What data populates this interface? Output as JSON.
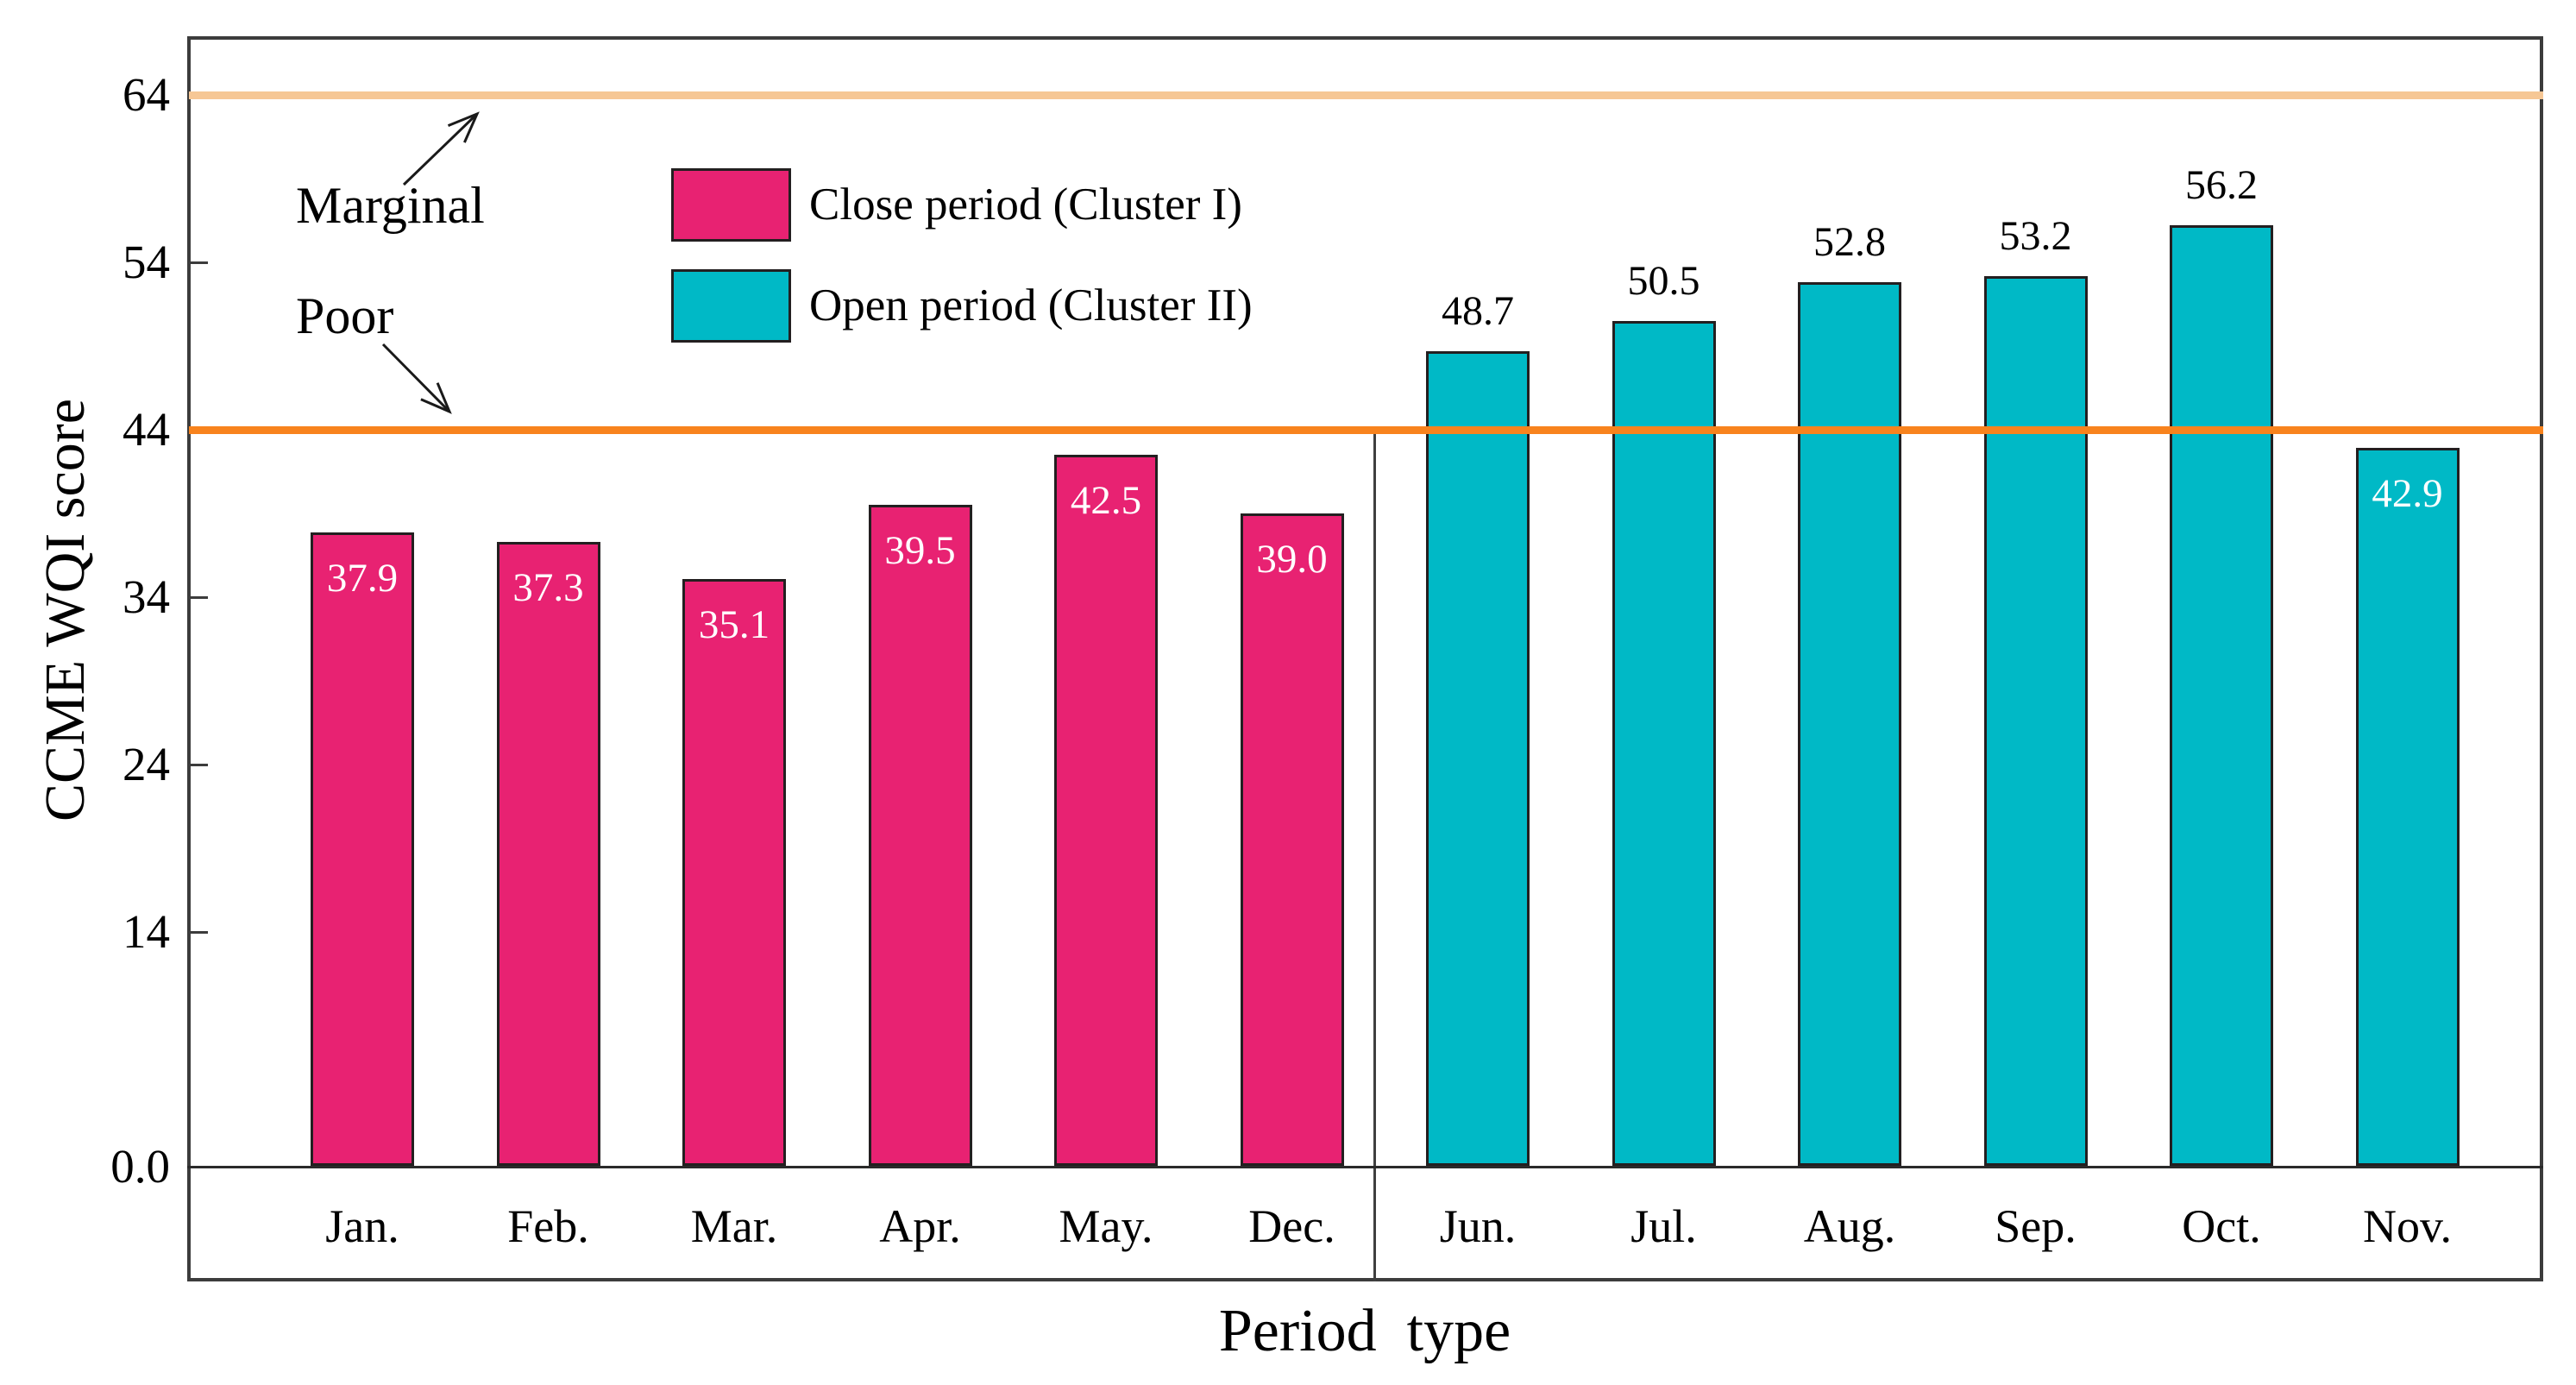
{
  "figure": {
    "background_color": "#ffffff",
    "frame_color": "#3c3c3c",
    "value_label_inside_color": "#ffffff",
    "value_label_above_color": "#000000"
  },
  "y_axis": {
    "title": "CCME WQI score",
    "ticks": [
      {
        "label": "0.0",
        "value": 0
      },
      {
        "label": "14",
        "value": 14
      },
      {
        "label": "24",
        "value": 24
      },
      {
        "label": "34",
        "value": 34
      },
      {
        "label": "44",
        "value": 44
      },
      {
        "label": "54",
        "value": 54
      },
      {
        "label": "64",
        "value": 64
      }
    ]
  },
  "x_axis": {
    "title": "Period  type"
  },
  "legend": [
    {
      "label": "Close period (Cluster I)",
      "color": "#e82272"
    },
    {
      "label": "Open period (Cluster II)",
      "color": "#00b9c6"
    }
  ],
  "reference_lines": [
    {
      "label": "Marginal",
      "value": 64,
      "color": "#f6c795"
    },
    {
      "label": "Poor",
      "value": 44,
      "color": "#f8831d"
    }
  ],
  "chart_data": {
    "type": "bar",
    "title": "",
    "xlabel": "Period  type",
    "ylabel": "CCME WQI score",
    "ylim": [
      0,
      68.5
    ],
    "grid": false,
    "legend_position": "upper-left-inside",
    "y_tick_labels": [
      "0.0",
      "14",
      "24",
      "34",
      "44",
      "54",
      "64"
    ],
    "categories": [
      "Jan.",
      "Feb.",
      "Mar.",
      "Apr.",
      "May.",
      "Dec.",
      "Jun.",
      "Jul.",
      "Aug.",
      "Sep.",
      "Oct.",
      "Nov."
    ],
    "series": [
      {
        "name": "Close period (Cluster I)",
        "color": "#e82272",
        "months": [
          "Jan.",
          "Feb.",
          "Mar.",
          "Apr.",
          "May.",
          "Dec."
        ],
        "values": [
          37.9,
          37.3,
          35.1,
          39.5,
          42.5,
          39.0
        ]
      },
      {
        "name": "Open period (Cluster II)",
        "color": "#00b9c6",
        "months": [
          "Jun.",
          "Jul.",
          "Aug.",
          "Sep.",
          "Oct.",
          "Nov."
        ],
        "values": [
          48.7,
          50.5,
          52.8,
          53.2,
          56.2,
          42.9
        ]
      }
    ],
    "reference_lines": [
      {
        "label": "Marginal",
        "value": 64
      },
      {
        "label": "Poor",
        "value": 44
      }
    ],
    "bars": [
      {
        "month": "Jan.",
        "value": 37.9,
        "value_label": "37.9",
        "group": 0,
        "value_label_position": "inside"
      },
      {
        "month": "Feb.",
        "value": 37.3,
        "value_label": "37.3",
        "group": 0,
        "value_label_position": "inside"
      },
      {
        "month": "Mar.",
        "value": 35.1,
        "value_label": "35.1",
        "group": 0,
        "value_label_position": "inside"
      },
      {
        "month": "Apr.",
        "value": 39.5,
        "value_label": "39.5",
        "group": 0,
        "value_label_position": "inside"
      },
      {
        "month": "May.",
        "value": 42.5,
        "value_label": "42.5",
        "group": 0,
        "value_label_position": "inside"
      },
      {
        "month": "Dec.",
        "value": 39.0,
        "value_label": "39.0",
        "group": 0,
        "value_label_position": "inside"
      },
      {
        "month": "Jun.",
        "value": 48.7,
        "value_label": "48.7",
        "group": 1,
        "value_label_position": "above"
      },
      {
        "month": "Jul.",
        "value": 50.5,
        "value_label": "50.5",
        "group": 1,
        "value_label_position": "above"
      },
      {
        "month": "Aug.",
        "value": 52.8,
        "value_label": "52.8",
        "group": 1,
        "value_label_position": "above"
      },
      {
        "month": "Sep.",
        "value": 53.2,
        "value_label": "53.2",
        "group": 1,
        "value_label_position": "above"
      },
      {
        "month": "Oct.",
        "value": 56.2,
        "value_label": "56.2",
        "group": 1,
        "value_label_position": "above"
      },
      {
        "month": "Nov.",
        "value": 42.9,
        "value_label": "42.9",
        "group": 1,
        "value_label_position": "inside"
      }
    ]
  }
}
